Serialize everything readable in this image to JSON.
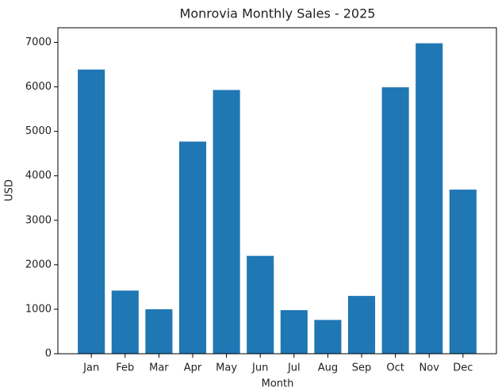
{
  "chart_data": {
    "type": "bar",
    "title": "Monrovia Monthly Sales - 2025",
    "xlabel": "Month",
    "ylabel": "USD",
    "categories": [
      "Jan",
      "Feb",
      "Mar",
      "Apr",
      "May",
      "Jun",
      "Jul",
      "Aug",
      "Sep",
      "Oct",
      "Nov",
      "Dec"
    ],
    "values": [
      6390,
      1420,
      1000,
      4770,
      5930,
      2200,
      980,
      760,
      1300,
      5990,
      6980,
      3690
    ],
    "color": "#1f77b4",
    "ylim": [
      0,
      7329
    ],
    "yticks": [
      0,
      1000,
      2000,
      3000,
      4000,
      5000,
      6000,
      7000
    ],
    "grid": false
  }
}
